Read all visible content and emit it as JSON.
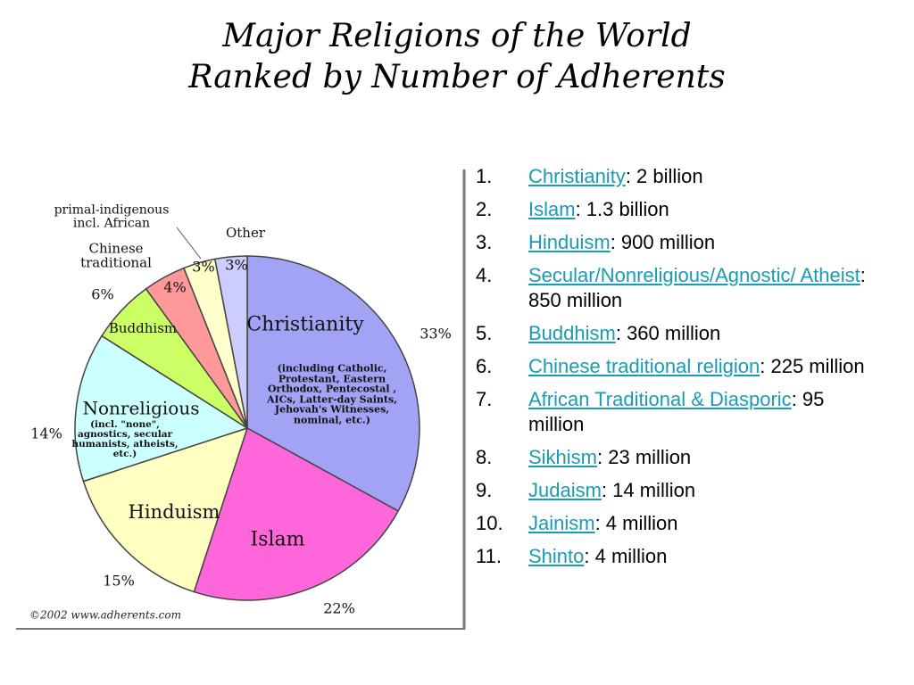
{
  "title": [
    "Major Religions of the World",
    "Ranked by Number of Adherents"
  ],
  "chart_data": {
    "type": "pie",
    "categories": [
      "Christianity",
      "Islam",
      "Hinduism",
      "Nonreligious",
      "Buddhism",
      "Chinese traditional",
      "primal-indigenous incl. African",
      "Other"
    ],
    "values": [
      33,
      22,
      15,
      14,
      6,
      4,
      3,
      3
    ],
    "value_labels": [
      "33%",
      "22%",
      "15%",
      "14%",
      "6%",
      "4%",
      "3%",
      "3%"
    ],
    "colors": [
      "#a3a3f5",
      "#ff66d9",
      "#ffffc2",
      "#ccffff",
      "#ccff66",
      "#ff9999",
      "#ffffcc",
      "#ccccff"
    ],
    "annotations": [
      "(including Catholic, Protestant, Eastern Orthodox, Pentecostal , AICs, Latter-day Saints, Jehovah's Witnesses, nominal, etc.)",
      "(incl. \"none\", agnostics, secular humanists, atheists, etc.)"
    ],
    "credit": "©2002 www.adherents.com"
  },
  "list": [
    {
      "marker": "1.",
      "link": "Christianity",
      "text": ": 2 billion"
    },
    {
      "marker": "2.",
      "link": "Islam",
      "text": ": 1.3 billion"
    },
    {
      "marker": "3.",
      "link": "Hinduism",
      "text": ": 900 million"
    },
    {
      "marker": "4.",
      "link": "Secular/Nonreligious/Agnostic/ Atheist",
      "text": ": 850 million"
    },
    {
      "marker": "5.",
      "link": "Buddhism",
      "text": ": 360 million"
    },
    {
      "marker": "6.",
      "link": "Chinese traditional religion",
      "text": ": 225 million"
    },
    {
      "marker": "7.",
      "link": "African Traditional & Diasporic",
      "text": ": 95 million"
    },
    {
      "marker": "8.",
      "link": "Sikhism",
      "text": ": 23 million"
    },
    {
      "marker": "9.",
      "link": "Judaism",
      "text": ": 14 million"
    },
    {
      "marker": "10.",
      "link": "Jainism",
      "text": ": 4 million"
    },
    {
      "marker": "11.",
      "link": "Shinto",
      "text": ": 4 million"
    }
  ]
}
